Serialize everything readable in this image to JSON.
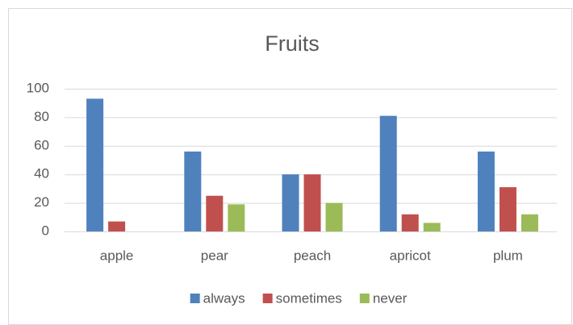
{
  "chart_data": {
    "type": "bar",
    "title": "Fruits",
    "categories": [
      "apple",
      "pear",
      "peach",
      "apricot",
      "plum"
    ],
    "series": [
      {
        "name": "always",
        "color": "#4f81bd",
        "values": [
          93,
          56,
          40,
          81,
          56
        ]
      },
      {
        "name": "sometimes",
        "color": "#c0504d",
        "values": [
          7,
          25,
          40,
          12,
          31
        ]
      },
      {
        "name": "never",
        "color": "#9bbb59",
        "values": [
          0,
          19,
          20,
          6,
          12
        ]
      }
    ],
    "ylim": [
      0,
      100
    ],
    "yticks": [
      0,
      20,
      40,
      60,
      80,
      100
    ],
    "grid": true,
    "legend": "bottom"
  }
}
